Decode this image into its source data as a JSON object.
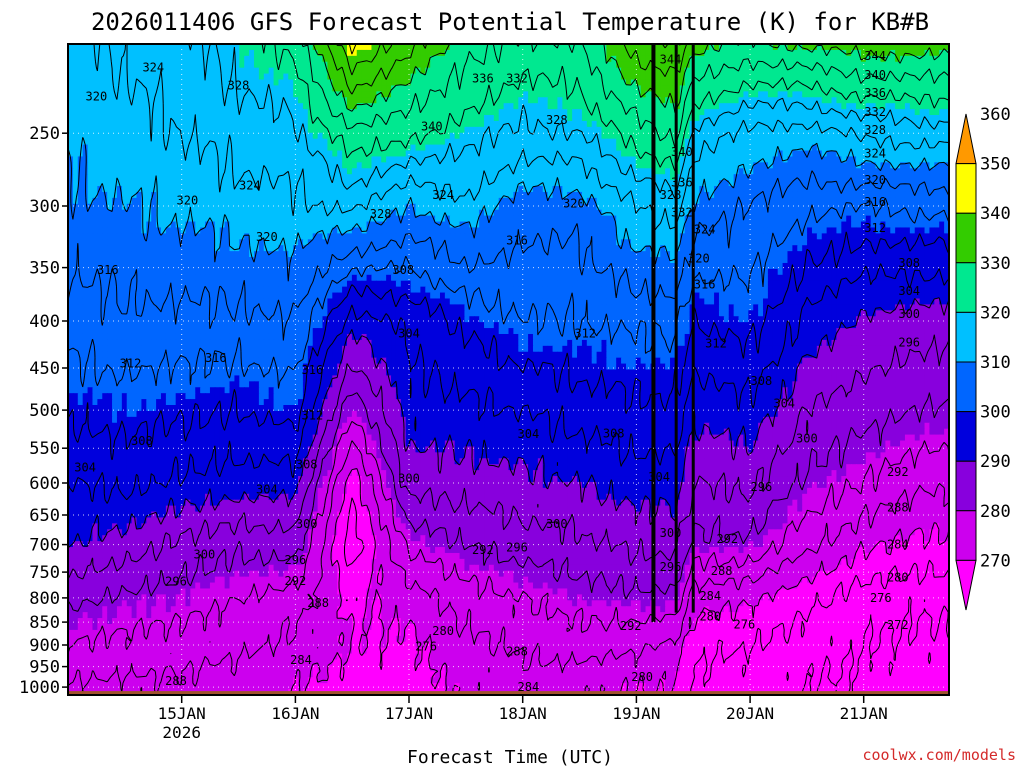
{
  "chart_data": {
    "type": "heatmap",
    "title": "2026011406 GFS Forecast Potential Temperature (K) for KB#B",
    "xlabel": "Forecast Time (UTC)",
    "ylabel": "",
    "credit": "coolwx.com/models",
    "x_ticks": [
      {
        "label": "15JAN",
        "sub": "2026",
        "day": 1
      },
      {
        "label": "16JAN",
        "sub": "",
        "day": 2
      },
      {
        "label": "17JAN",
        "sub": "",
        "day": 3
      },
      {
        "label": "18JAN",
        "sub": "",
        "day": 4
      },
      {
        "label": "19JAN",
        "sub": "",
        "day": 5
      },
      {
        "label": "20JAN",
        "sub": "",
        "day": 6
      },
      {
        "label": "21JAN",
        "sub": "",
        "day": 7
      }
    ],
    "xlim": [
      0.0,
      7.75
    ],
    "y_ticks": [
      250,
      300,
      350,
      400,
      450,
      500,
      550,
      600,
      650,
      700,
      750,
      800,
      850,
      900,
      950,
      1000
    ],
    "ylim": [
      1020,
      200
    ],
    "colorbar": {
      "levels": [
        270,
        280,
        290,
        300,
        310,
        320,
        330,
        340,
        350,
        360
      ],
      "colors": [
        "#ff00ff",
        "#cc00ee",
        "#8800dd",
        "#0000dd",
        "#0066ff",
        "#00c0ff",
        "#00e890",
        "#33cc00",
        "#ffff00",
        "#ff9900"
      ]
    },
    "contour_interval_K": 4,
    "profiles": [
      {
        "day": 0.0,
        "theta": [
          [
            1000,
            283
          ],
          [
            900,
            288
          ],
          [
            800,
            293
          ],
          [
            700,
            300
          ],
          [
            600,
            304
          ],
          [
            500,
            309
          ],
          [
            400,
            314
          ],
          [
            300,
            319
          ],
          [
            250,
            321
          ],
          [
            200,
            323
          ]
        ]
      },
      {
        "day": 0.5,
        "theta": [
          [
            1000,
            283
          ],
          [
            900,
            287
          ],
          [
            800,
            291
          ],
          [
            700,
            298
          ],
          [
            600,
            305
          ],
          [
            500,
            310
          ],
          [
            400,
            315
          ],
          [
            300,
            320
          ],
          [
            250,
            322
          ],
          [
            200,
            325
          ]
        ]
      },
      {
        "day": 1.0,
        "theta": [
          [
            1000,
            283
          ],
          [
            900,
            286
          ],
          [
            800,
            290
          ],
          [
            700,
            295
          ],
          [
            600,
            303
          ],
          [
            500,
            309
          ],
          [
            400,
            315
          ],
          [
            300,
            321
          ],
          [
            250,
            324
          ],
          [
            200,
            327
          ]
        ]
      },
      {
        "day": 1.5,
        "theta": [
          [
            1000,
            282
          ],
          [
            900,
            285
          ],
          [
            800,
            288
          ],
          [
            700,
            293
          ],
          [
            600,
            302
          ],
          [
            500,
            308
          ],
          [
            400,
            315
          ],
          [
            300,
            322
          ],
          [
            250,
            326
          ],
          [
            200,
            330
          ]
        ]
      },
      {
        "day": 2.0,
        "theta": [
          [
            1000,
            280
          ],
          [
            900,
            283
          ],
          [
            800,
            286
          ],
          [
            700,
            294
          ],
          [
            600,
            302
          ],
          [
            500,
            310
          ],
          [
            400,
            316
          ],
          [
            300,
            323
          ],
          [
            250,
            327
          ],
          [
            200,
            333
          ]
        ]
      },
      {
        "day": 2.5,
        "theta": [
          [
            1000,
            278
          ],
          [
            900,
            280
          ],
          [
            800,
            279
          ],
          [
            700,
            273
          ],
          [
            600,
            277
          ],
          [
            500,
            289
          ],
          [
            400,
            302
          ],
          [
            300,
            325
          ],
          [
            250,
            335
          ],
          [
            200,
            353
          ]
        ]
      },
      {
        "day": 3.0,
        "theta": [
          [
            1000,
            278
          ],
          [
            900,
            279
          ],
          [
            800,
            282
          ],
          [
            700,
            289
          ],
          [
            600,
            298
          ],
          [
            500,
            302
          ],
          [
            400,
            305
          ],
          [
            300,
            320
          ],
          [
            250,
            333
          ],
          [
            200,
            345
          ]
        ]
      },
      {
        "day": 3.5,
        "theta": [
          [
            1000,
            281
          ],
          [
            900,
            283
          ],
          [
            800,
            286
          ],
          [
            700,
            292
          ],
          [
            600,
            298
          ],
          [
            500,
            303
          ],
          [
            400,
            309
          ],
          [
            300,
            323
          ],
          [
            250,
            330
          ],
          [
            200,
            338
          ]
        ]
      },
      {
        "day": 4.0,
        "theta": [
          [
            1000,
            282
          ],
          [
            900,
            285
          ],
          [
            800,
            288
          ],
          [
            700,
            294
          ],
          [
            600,
            299
          ],
          [
            500,
            304
          ],
          [
            400,
            312
          ],
          [
            300,
            318
          ],
          [
            250,
            327
          ],
          [
            200,
            335
          ]
        ]
      },
      {
        "day": 4.5,
        "theta": [
          [
            1000,
            281
          ],
          [
            900,
            286
          ],
          [
            800,
            290
          ],
          [
            700,
            295
          ],
          [
            600,
            300
          ],
          [
            500,
            306
          ],
          [
            400,
            312
          ],
          [
            300,
            318
          ],
          [
            250,
            328
          ],
          [
            200,
            336
          ]
        ]
      },
      {
        "day": 5.0,
        "theta": [
          [
            1000,
            280
          ],
          [
            900,
            285
          ],
          [
            800,
            291
          ],
          [
            700,
            297
          ],
          [
            600,
            302
          ],
          [
            500,
            307
          ],
          [
            400,
            313
          ],
          [
            300,
            324
          ],
          [
            250,
            334
          ],
          [
            200,
            346
          ]
        ]
      },
      {
        "day": 5.35,
        "theta": [
          [
            1000,
            280
          ],
          [
            900,
            283
          ],
          [
            800,
            291
          ],
          [
            700,
            297
          ],
          [
            600,
            302
          ],
          [
            500,
            307
          ],
          [
            400,
            313
          ],
          [
            300,
            326
          ],
          [
            250,
            337
          ],
          [
            200,
            348
          ]
        ]
      },
      {
        "day": 5.5,
        "theta": [
          [
            1000,
            275
          ],
          [
            900,
            277
          ],
          [
            800,
            282
          ],
          [
            700,
            291
          ],
          [
            600,
            296
          ],
          [
            500,
            301
          ],
          [
            400,
            308
          ],
          [
            300,
            319
          ],
          [
            250,
            327
          ],
          [
            200,
            342
          ]
        ]
      },
      {
        "day": 6.0,
        "theta": [
          [
            1000,
            274
          ],
          [
            900,
            276
          ],
          [
            800,
            281
          ],
          [
            700,
            291
          ],
          [
            600,
            297
          ],
          [
            500,
            303
          ],
          [
            400,
            310
          ],
          [
            300,
            316
          ],
          [
            250,
            323
          ],
          [
            200,
            339
          ]
        ]
      },
      {
        "day": 6.5,
        "theta": [
          [
            1000,
            272
          ],
          [
            900,
            274
          ],
          [
            800,
            277
          ],
          [
            700,
            285
          ],
          [
            600,
            291
          ],
          [
            500,
            296
          ],
          [
            400,
            303
          ],
          [
            300,
            313
          ],
          [
            250,
            322
          ],
          [
            200,
            341
          ]
        ]
      },
      {
        "day": 7.0,
        "theta": [
          [
            1000,
            271
          ],
          [
            900,
            272
          ],
          [
            800,
            274
          ],
          [
            700,
            281
          ],
          [
            600,
            288
          ],
          [
            500,
            294
          ],
          [
            400,
            299
          ],
          [
            300,
            312
          ],
          [
            250,
            325
          ],
          [
            200,
            342
          ]
        ]
      },
      {
        "day": 7.5,
        "theta": [
          [
            1000,
            270
          ],
          [
            900,
            271
          ],
          [
            800,
            273
          ],
          [
            700,
            279
          ],
          [
            600,
            285
          ],
          [
            500,
            292
          ],
          [
            400,
            298
          ],
          [
            300,
            313
          ],
          [
            250,
            326
          ],
          [
            200,
            342
          ]
        ]
      },
      {
        "day": 7.75,
        "theta": [
          [
            1000,
            270
          ],
          [
            900,
            271
          ],
          [
            800,
            273
          ],
          [
            700,
            279
          ],
          [
            600,
            285
          ],
          [
            500,
            292
          ],
          [
            400,
            298
          ],
          [
            300,
            313
          ],
          [
            250,
            326
          ],
          [
            200,
            342
          ]
        ]
      }
    ],
    "contour_labels": [
      {
        "text": "324",
        "day": 0.75,
        "p": 212
      },
      {
        "text": "320",
        "day": 0.25,
        "p": 228
      },
      {
        "text": "328",
        "day": 1.5,
        "p": 222
      },
      {
        "text": "340",
        "day": 3.2,
        "p": 246
      },
      {
        "text": "336",
        "day": 3.65,
        "p": 218
      },
      {
        "text": "332",
        "day": 3.95,
        "p": 218
      },
      {
        "text": "328",
        "day": 4.3,
        "p": 242
      },
      {
        "text": "344",
        "day": 5.3,
        "p": 208
      },
      {
        "text": "344",
        "day": 7.1,
        "p": 206
      },
      {
        "text": "340",
        "day": 7.1,
        "p": 216
      },
      {
        "text": "336",
        "day": 7.1,
        "p": 226
      },
      {
        "text": "332",
        "day": 7.1,
        "p": 237
      },
      {
        "text": "328",
        "day": 7.1,
        "p": 248
      },
      {
        "text": "324",
        "day": 7.1,
        "p": 263
      },
      {
        "text": "320",
        "day": 7.1,
        "p": 281
      },
      {
        "text": "316",
        "day": 7.1,
        "p": 297
      },
      {
        "text": "312",
        "day": 7.1,
        "p": 317
      },
      {
        "text": "308",
        "day": 7.4,
        "p": 346
      },
      {
        "text": "304",
        "day": 7.4,
        "p": 371
      },
      {
        "text": "300",
        "day": 7.4,
        "p": 393
      },
      {
        "text": "296",
        "day": 7.4,
        "p": 422
      },
      {
        "text": "292",
        "day": 7.3,
        "p": 584
      },
      {
        "text": "288",
        "day": 7.3,
        "p": 638
      },
      {
        "text": "284",
        "day": 7.3,
        "p": 700
      },
      {
        "text": "280",
        "day": 7.3,
        "p": 760
      },
      {
        "text": "276",
        "day": 7.15,
        "p": 800
      },
      {
        "text": "272",
        "day": 7.3,
        "p": 856
      },
      {
        "text": "340",
        "day": 5.4,
        "p": 262
      },
      {
        "text": "336",
        "day": 5.4,
        "p": 283
      },
      {
        "text": "332",
        "day": 5.4,
        "p": 305
      },
      {
        "text": "328",
        "day": 5.3,
        "p": 292
      },
      {
        "text": "324",
        "day": 5.6,
        "p": 318
      },
      {
        "text": "320",
        "day": 5.55,
        "p": 342
      },
      {
        "text": "316",
        "day": 5.6,
        "p": 365
      },
      {
        "text": "312",
        "day": 5.7,
        "p": 423
      },
      {
        "text": "308",
        "day": 6.1,
        "p": 465
      },
      {
        "text": "304",
        "day": 6.3,
        "p": 492
      },
      {
        "text": "300",
        "day": 6.5,
        "p": 537
      },
      {
        "text": "296",
        "day": 6.1,
        "p": 606
      },
      {
        "text": "292",
        "day": 5.8,
        "p": 690
      },
      {
        "text": "288",
        "day": 5.75,
        "p": 748
      },
      {
        "text": "284",
        "day": 5.65,
        "p": 796
      },
      {
        "text": "280",
        "day": 5.65,
        "p": 838
      },
      {
        "text": "276",
        "day": 5.95,
        "p": 855
      },
      {
        "text": "320",
        "day": 1.05,
        "p": 296
      },
      {
        "text": "324",
        "day": 1.6,
        "p": 285
      },
      {
        "text": "320",
        "day": 1.75,
        "p": 324
      },
      {
        "text": "316",
        "day": 0.35,
        "p": 352
      },
      {
        "text": "312",
        "day": 0.55,
        "p": 445
      },
      {
        "text": "316",
        "day": 1.3,
        "p": 439
      },
      {
        "text": "316",
        "day": 2.15,
        "p": 452
      },
      {
        "text": "312",
        "day": 2.15,
        "p": 507
      },
      {
        "text": "308",
        "day": 0.65,
        "p": 540
      },
      {
        "text": "304",
        "day": 0.15,
        "p": 577
      },
      {
        "text": "308",
        "day": 2.1,
        "p": 573
      },
      {
        "text": "304",
        "day": 1.75,
        "p": 610
      },
      {
        "text": "300",
        "day": 2.1,
        "p": 665
      },
      {
        "text": "300",
        "day": 1.2,
        "p": 718
      },
      {
        "text": "296",
        "day": 2.0,
        "p": 728
      },
      {
        "text": "296",
        "day": 0.95,
        "p": 768
      },
      {
        "text": "292",
        "day": 2.0,
        "p": 767
      },
      {
        "text": "288",
        "day": 2.2,
        "p": 810
      },
      {
        "text": "284",
        "day": 2.05,
        "p": 934
      },
      {
        "text": "288",
        "day": 0.95,
        "p": 985
      },
      {
        "text": "328",
        "day": 2.75,
        "p": 306
      },
      {
        "text": "324",
        "day": 3.3,
        "p": 292
      },
      {
        "text": "308",
        "day": 2.95,
        "p": 352
      },
      {
        "text": "304",
        "day": 3.0,
        "p": 413
      },
      {
        "text": "300",
        "day": 3.0,
        "p": 593
      },
      {
        "text": "292",
        "day": 3.65,
        "p": 710
      },
      {
        "text": "280",
        "day": 3.3,
        "p": 869
      },
      {
        "text": "276",
        "day": 3.15,
        "p": 903
      },
      {
        "text": "320",
        "day": 4.45,
        "p": 298
      },
      {
        "text": "316",
        "day": 3.95,
        "p": 327
      },
      {
        "text": "312",
        "day": 4.55,
        "p": 413
      },
      {
        "text": "304",
        "day": 4.05,
        "p": 531
      },
      {
        "text": "308",
        "day": 4.8,
        "p": 530
      },
      {
        "text": "304",
        "day": 5.2,
        "p": 591
      },
      {
        "text": "300",
        "day": 4.3,
        "p": 665
      },
      {
        "text": "296",
        "day": 3.95,
        "p": 705
      },
      {
        "text": "300",
        "day": 5.3,
        "p": 680
      },
      {
        "text": "296",
        "day": 5.3,
        "p": 740
      },
      {
        "text": "292",
        "day": 4.95,
        "p": 858
      },
      {
        "text": "288",
        "day": 3.95,
        "p": 915
      },
      {
        "text": "284",
        "day": 4.05,
        "p": 1000
      },
      {
        "text": "280",
        "day": 5.05,
        "p": 975
      }
    ]
  }
}
